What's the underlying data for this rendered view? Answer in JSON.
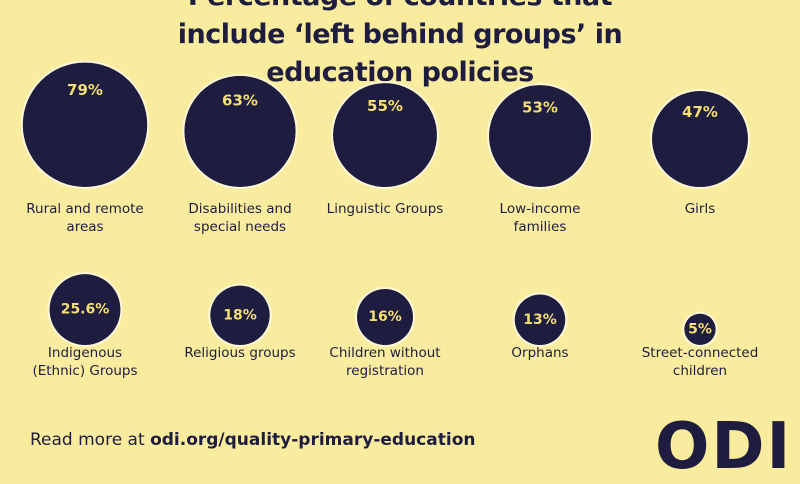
{
  "chart_data": {
    "type": "bubble",
    "title": "Percentage of countries that include ‘left behind groups’ in education policies",
    "categories": [
      "Rural and remote areas",
      "Disabilities and special needs",
      "Linguistic Groups",
      "Low-income families",
      "Girls",
      "Indigenous (Ethnic) Groups",
      "Religious groups",
      "Children without registration",
      "Orphans",
      "Street-connected children"
    ],
    "values": [
      79,
      63,
      55,
      53,
      47,
      25.6,
      18,
      16,
      13,
      5
    ],
    "value_labels": [
      "79%",
      "63%",
      "55%",
      "53%",
      "47%",
      "25.6%",
      "18%",
      "16%",
      "13%",
      "5%"
    ],
    "color": "#1e1c3f",
    "footer_prefix": "Read more at",
    "footer_link": "odi.org/quality-primary-education",
    "logo": "ODI"
  }
}
